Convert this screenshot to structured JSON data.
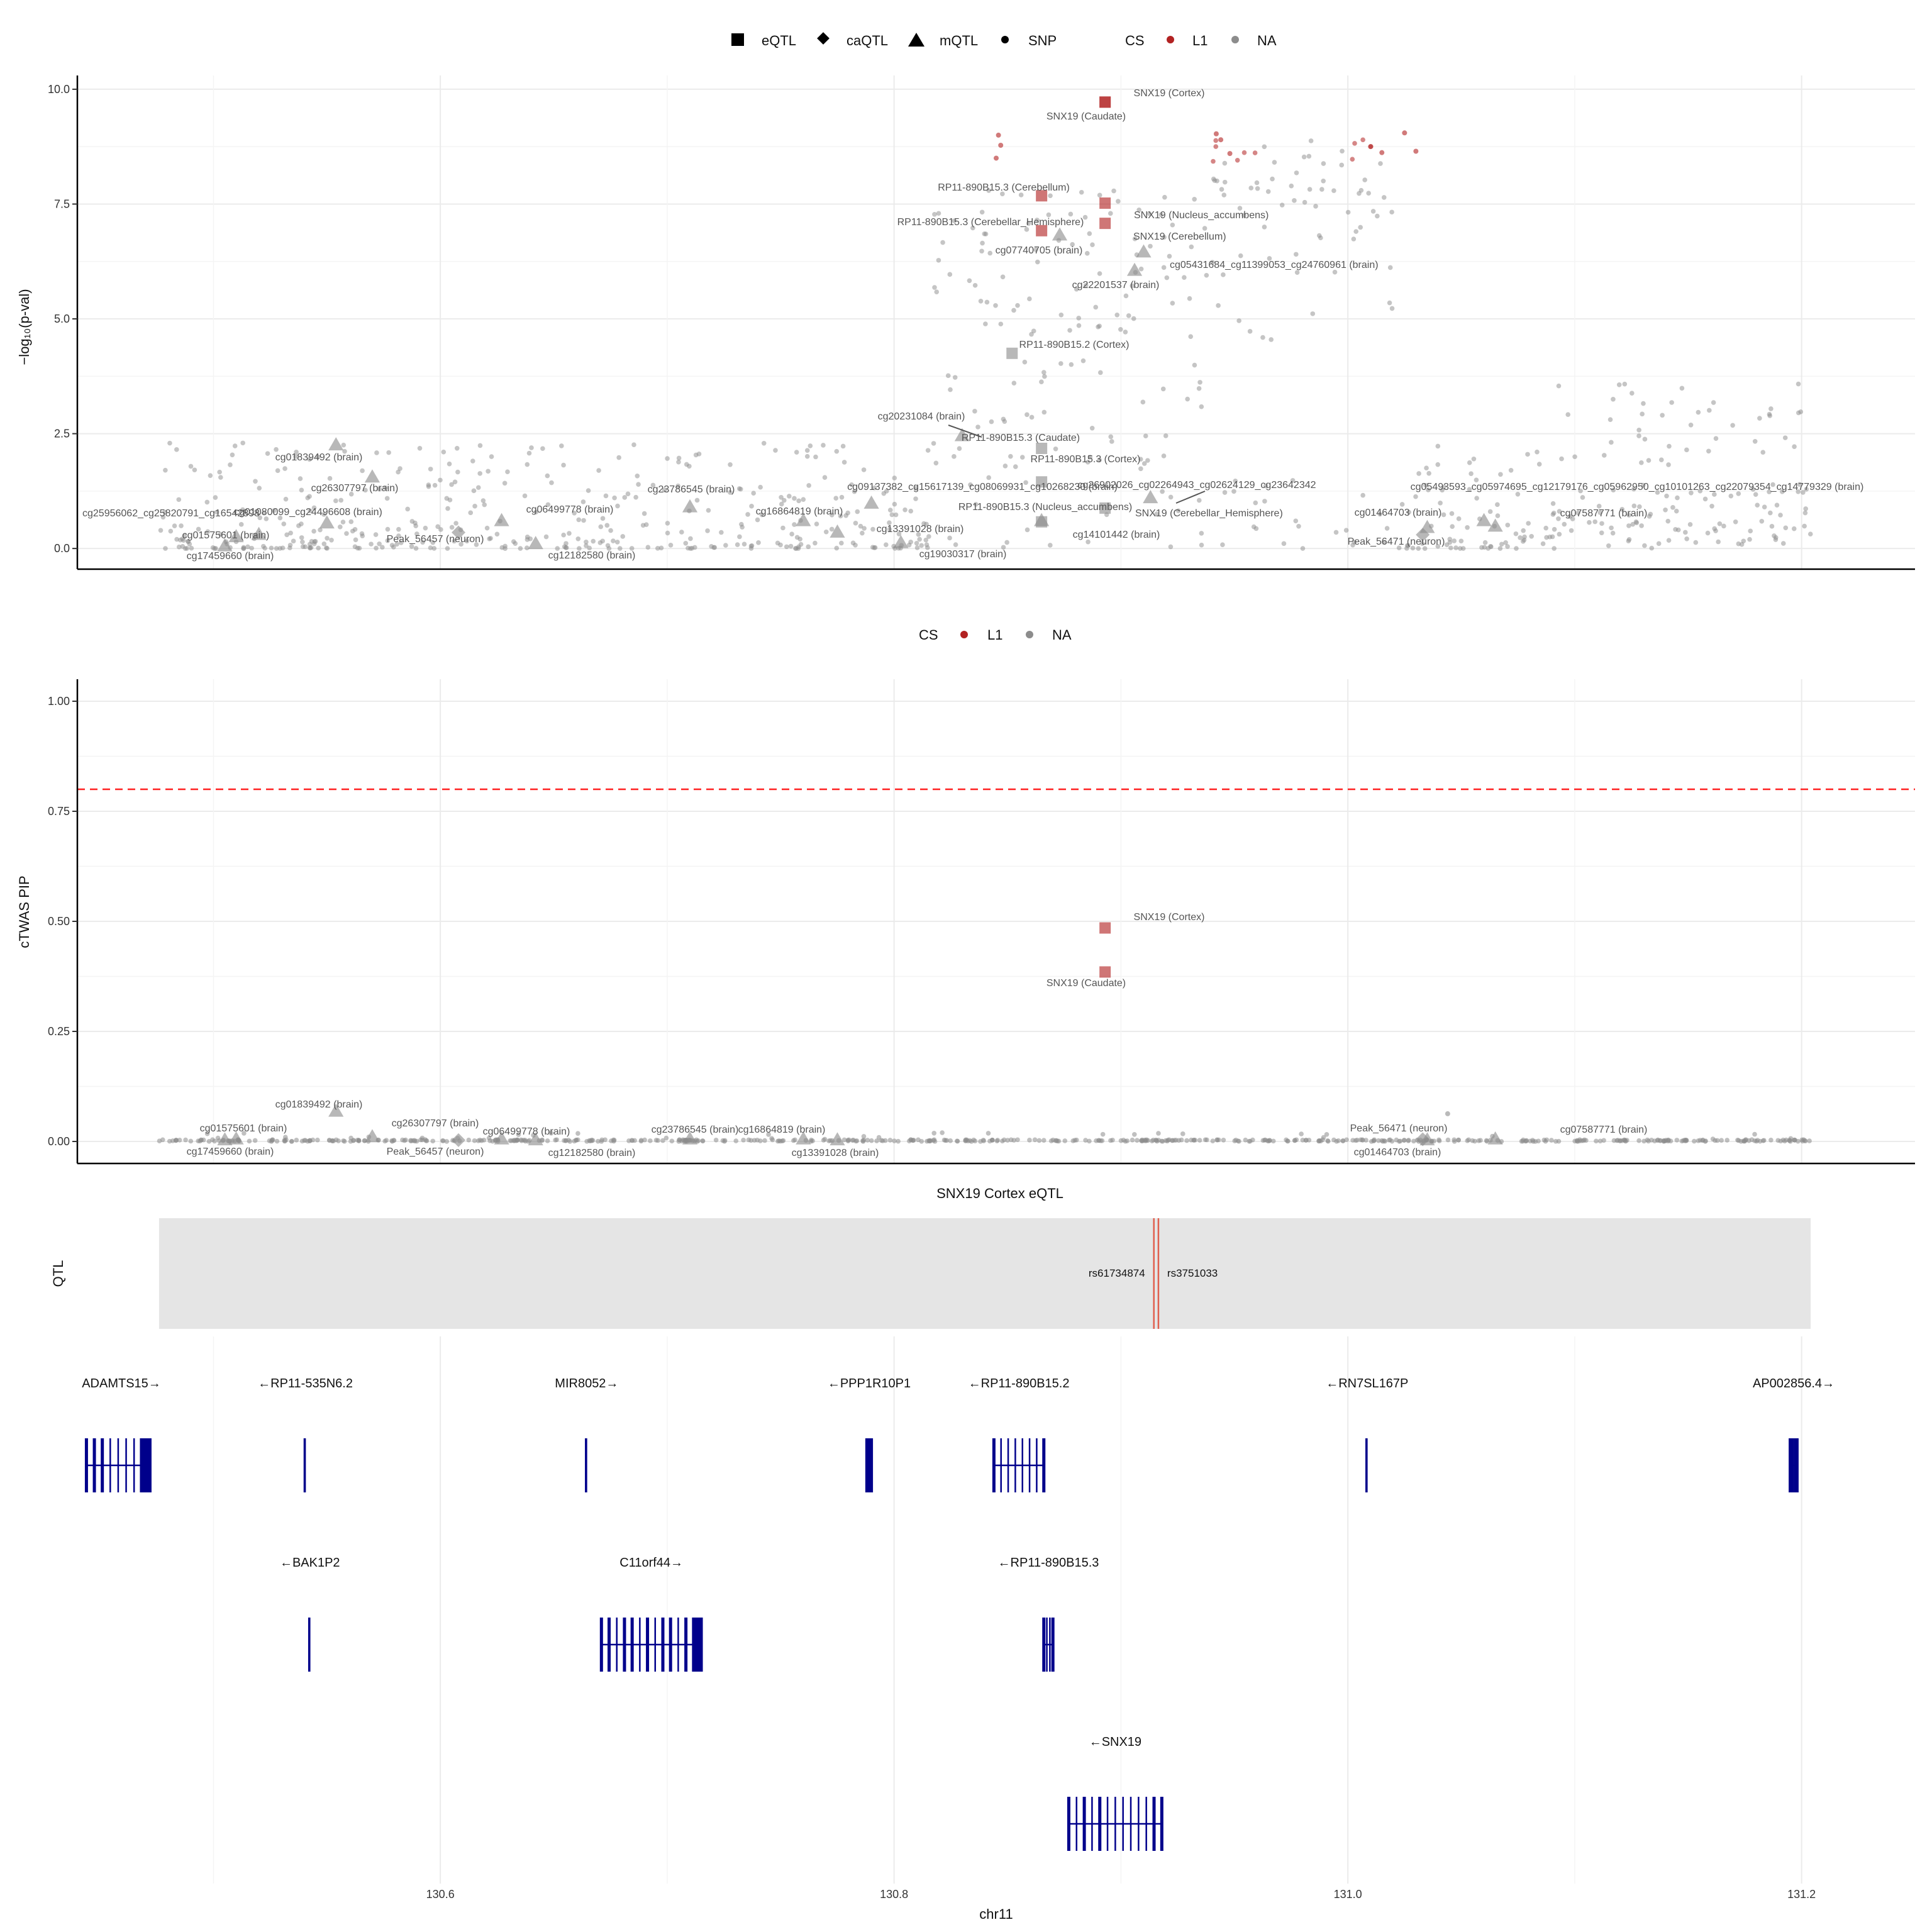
{
  "colors": {
    "cs_l1": "#b22222",
    "na": "#8c8c8c",
    "gene": "#00008b",
    "threshold": "#ff2020",
    "qtl_bg": "#e5e5e5",
    "qtl_line": "#e06050"
  },
  "legend_top": {
    "shapes": [
      {
        "name": "eQTL",
        "icon": "square"
      },
      {
        "name": "caQTL",
        "icon": "diamond"
      },
      {
        "name": "mQTL",
        "icon": "triangle"
      },
      {
        "name": "SNP",
        "icon": "circle"
      }
    ],
    "cs_title": "CS",
    "cs_items": [
      "L1",
      "NA"
    ]
  },
  "legend_mid": {
    "cs_title": "CS",
    "cs_items": [
      "L1",
      "NA"
    ]
  },
  "x_axis": {
    "label": "chr11",
    "ticks": [
      "130.6",
      "130.8",
      "131.0",
      "131.2"
    ],
    "tick_values": [
      130.6,
      130.8,
      131.0,
      131.2
    ],
    "range": [
      130.44,
      131.25
    ]
  },
  "chart_data": [
    {
      "type": "scatter",
      "ylabel": "−log₁₀(p-val)",
      "ylim": [
        -0.45,
        10.3
      ],
      "y_ticks": [
        "0.0",
        "2.5",
        "5.0",
        "7.5",
        "10.0"
      ],
      "y_tick_values": [
        0,
        2.5,
        5,
        7.5,
        10
      ],
      "points": [
        {
          "label": "SNX19 (Cortex)",
          "shape": "square",
          "cs": "L1",
          "x": 130.893,
          "y": 9.72
        },
        {
          "label": "SNX19 (Caudate)",
          "shape": "square",
          "cs": "L1",
          "x": 130.893,
          "y": 9.72
        },
        {
          "label": "RP11-890B15.3 (Cerebellum)",
          "shape": "square",
          "cs": "L1",
          "x": 130.865,
          "y": 7.68
        },
        {
          "label": "SNX19 (Nucleus_accumbens)",
          "shape": "square",
          "cs": "L1",
          "x": 130.893,
          "y": 7.52
        },
        {
          "label": "RP11-890B15.3 (Cerebellar_Hemisphere)",
          "shape": "square",
          "cs": "L1",
          "x": 130.865,
          "y": 6.92
        },
        {
          "label": "SNX19 (Cerebellum)",
          "shape": "square",
          "cs": "L1",
          "x": 130.893,
          "y": 7.08
        },
        {
          "label": "cg07740705 (brain)",
          "shape": "triangle",
          "cs": "NA",
          "x": 130.873,
          "y": 6.82
        },
        {
          "label": "cg05431684_cg11399053_cg24760961 (brain)",
          "shape": "triangle",
          "cs": "NA",
          "x": 130.91,
          "y": 6.45
        },
        {
          "label": "cg22201537 (brain)",
          "shape": "triangle",
          "cs": "NA",
          "x": 130.906,
          "y": 6.05
        },
        {
          "label": "RP11-890B15.2 (Cortex)",
          "shape": "square",
          "cs": "NA",
          "x": 130.852,
          "y": 4.25
        },
        {
          "label": "cg20231084 (brain)",
          "shape": "triangle",
          "cs": "NA",
          "x": 130.83,
          "y": 2.45
        },
        {
          "label": "RP11-890B15.3 (Caudate)",
          "shape": "square",
          "cs": "NA",
          "x": 130.865,
          "y": 2.18
        },
        {
          "label": "RP11-890B15.3 (Cortex)",
          "shape": "square",
          "cs": "NA",
          "x": 130.865,
          "y": 1.45
        },
        {
          "label": "RP11-890B15.3 (Nucleus_accumbens)",
          "shape": "square",
          "cs": "NA",
          "x": 130.865,
          "y": 0.58
        },
        {
          "label": "SNX19 (Cerebellar_Hemisphere)",
          "shape": "square",
          "cs": "NA",
          "x": 130.893,
          "y": 0.88
        },
        {
          "label": "cg26902026_cg02264943_cg02624129_cg23642342",
          "shape": "triangle",
          "cs": "NA",
          "x": 130.913,
          "y": 1.1
        },
        {
          "label": "cg14101442 (brain)",
          "shape": "triangle",
          "cs": "NA",
          "x": 130.865,
          "y": 0.6
        },
        {
          "label": "cg01839492 (brain)",
          "shape": "triangle",
          "cs": "NA",
          "x": 130.554,
          "y": 2.25
        },
        {
          "label": "cg26307797 (brain)",
          "shape": "triangle",
          "cs": "NA",
          "x": 130.57,
          "y": 1.55
        },
        {
          "label": "cg25956062_cg25820791_cg16542898",
          "shape": "triangle",
          "cs": "NA",
          "x": 130.52,
          "y": 0.3
        },
        {
          "label": "cg01080099_cg24496608 (brain)",
          "shape": "triangle",
          "cs": "NA",
          "x": 130.55,
          "y": 0.55
        },
        {
          "label": "cg01575601 (brain)",
          "shape": "triangle",
          "cs": "NA",
          "x": 130.51,
          "y": 0.25
        },
        {
          "label": "cg17459660 (brain)",
          "shape": "triangle",
          "cs": "NA",
          "x": 130.505,
          "y": 0.05
        },
        {
          "label": "Peak_56457 (neuron)",
          "shape": "diamond",
          "cs": "NA",
          "x": 130.608,
          "y": 0.35
        },
        {
          "label": "cg06499778 (brain)",
          "shape": "triangle",
          "cs": "NA",
          "x": 130.627,
          "y": 0.6
        },
        {
          "label": "cg12182580 (brain)",
          "shape": "triangle",
          "cs": "NA",
          "x": 130.642,
          "y": 0.1
        },
        {
          "label": "cg23786545 (brain)",
          "shape": "triangle",
          "cs": "NA",
          "x": 130.71,
          "y": 0.9
        },
        {
          "label": "cg09137382_cg15617139_cg08069931_cg10268230 (brain)",
          "shape": "triangle",
          "cs": "NA",
          "x": 130.79,
          "y": 0.98
        },
        {
          "label": "cg16864819 (brain)",
          "shape": "triangle",
          "cs": "NA",
          "x": 130.76,
          "y": 0.6
        },
        {
          "label": "cg13391028 (brain)",
          "shape": "triangle",
          "cs": "NA",
          "x": 130.775,
          "y": 0.35
        },
        {
          "label": "cg19030317 (brain)",
          "shape": "triangle",
          "cs": "NA",
          "x": 130.803,
          "y": 0.12
        },
        {
          "label": "cg01464703 (brain)",
          "shape": "triangle",
          "cs": "NA",
          "x": 131.035,
          "y": 0.45
        },
        {
          "label": "Peak_56471 (neuron)",
          "shape": "diamond",
          "cs": "NA",
          "x": 131.033,
          "y": 0.3
        },
        {
          "label": "cg05493593_cg05974695_cg12179176_cg05962950_cg10101263_cg22079354_cg14779329 (brain)",
          "shape": "triangle",
          "cs": "NA",
          "x": 131.06,
          "y": 0.6
        },
        {
          "label": "cg07587771 (brain)",
          "shape": "triangle",
          "cs": "NA",
          "x": 131.065,
          "y": 0.48
        }
      ]
    },
    {
      "type": "scatter",
      "ylabel": "cTWAS PIP",
      "ylim": [
        -0.05,
        1.05
      ],
      "y_ticks": [
        "0.00",
        "0.25",
        "0.50",
        "0.75",
        "1.00"
      ],
      "y_tick_values": [
        0,
        0.25,
        0.5,
        0.75,
        1
      ],
      "threshold": 0.8,
      "points": [
        {
          "label": "SNX19 (Cortex)",
          "shape": "square",
          "cs": "L1",
          "x": 130.893,
          "y": 0.485
        },
        {
          "label": "SNX19 (Caudate)",
          "shape": "square",
          "cs": "L1",
          "x": 130.893,
          "y": 0.385
        },
        {
          "label": "cg01839492 (brain)",
          "shape": "triangle",
          "cs": "NA",
          "x": 130.554,
          "y": 0.068
        },
        {
          "label": "cg26307797 (brain)",
          "shape": "triangle",
          "cs": "NA",
          "x": 130.57,
          "y": 0.01
        },
        {
          "label": "cg01575601 (brain)",
          "shape": "triangle",
          "cs": "NA",
          "x": 130.51,
          "y": 0.005
        },
        {
          "label": "cg17459660 (brain)",
          "shape": "triangle",
          "cs": "NA",
          "x": 130.505,
          "y": 0.003
        },
        {
          "label": "Peak_56457 (neuron)",
          "shape": "diamond",
          "cs": "NA",
          "x": 130.608,
          "y": 0.003
        },
        {
          "label": "cg06499778 (brain)",
          "shape": "triangle",
          "cs": "NA",
          "x": 130.627,
          "y": 0.005
        },
        {
          "label": "cg12182580 (brain)",
          "shape": "triangle",
          "cs": "NA",
          "x": 130.642,
          "y": 0.003
        },
        {
          "label": "cg23786545 (brain)",
          "shape": "triangle",
          "cs": "NA",
          "x": 130.71,
          "y": 0.005
        },
        {
          "label": "cg16864819 (brain)",
          "shape": "triangle",
          "cs": "NA",
          "x": 130.76,
          "y": 0.005
        },
        {
          "label": "cg13391028 (brain)",
          "shape": "triangle",
          "cs": "NA",
          "x": 130.775,
          "y": 0.003
        },
        {
          "label": "Peak_56471 (neuron)",
          "shape": "diamond",
          "cs": "NA",
          "x": 131.033,
          "y": 0.005
        },
        {
          "label": "cg01464703 (brain)",
          "shape": "triangle",
          "cs": "NA",
          "x": 131.035,
          "y": 0.003
        },
        {
          "label": "cg07587771 (brain)",
          "shape": "triangle",
          "cs": "NA",
          "x": 131.065,
          "y": 0.005
        }
      ]
    }
  ],
  "qtl_track": {
    "title": "SNX19 Cortex eQTL",
    "ylabel": "QTL",
    "range": [
      130.476,
      131.204
    ],
    "snps": [
      {
        "name": "rs61734874",
        "x": 130.9145
      },
      {
        "name": "rs3751033",
        "x": 130.9165
      }
    ]
  },
  "genes": [
    {
      "name": "ADAMTS15→",
      "row": 0,
      "start": 130.444,
      "end": 130.472
    },
    {
      "name": "←RP11-535N6.2",
      "row": 0,
      "start": 130.54,
      "end": 130.541
    },
    {
      "name": "MIR8052→",
      "row": 0,
      "start": 130.664,
      "end": 130.665
    },
    {
      "name": "←PPP1R10P1",
      "row": 0,
      "start": 130.788,
      "end": 130.79
    },
    {
      "name": "←RP11-890B15.2",
      "row": 0,
      "start": 130.844,
      "end": 130.866
    },
    {
      "name": "←RN7SL167P",
      "row": 0,
      "start": 131.008,
      "end": 131.009
    },
    {
      "name": "AP002856.4→",
      "row": 0,
      "start": 131.195,
      "end": 131.198
    },
    {
      "name": "←BAK1P2",
      "row": 1,
      "start": 130.542,
      "end": 130.543
    },
    {
      "name": "C11orf44→",
      "row": 1,
      "start": 130.671,
      "end": 130.715
    },
    {
      "name": "←RP11-890B15.3",
      "row": 1,
      "start": 130.866,
      "end": 130.87
    },
    {
      "name": "←SNX19",
      "row": 2,
      "start": 130.877,
      "end": 130.918
    }
  ]
}
